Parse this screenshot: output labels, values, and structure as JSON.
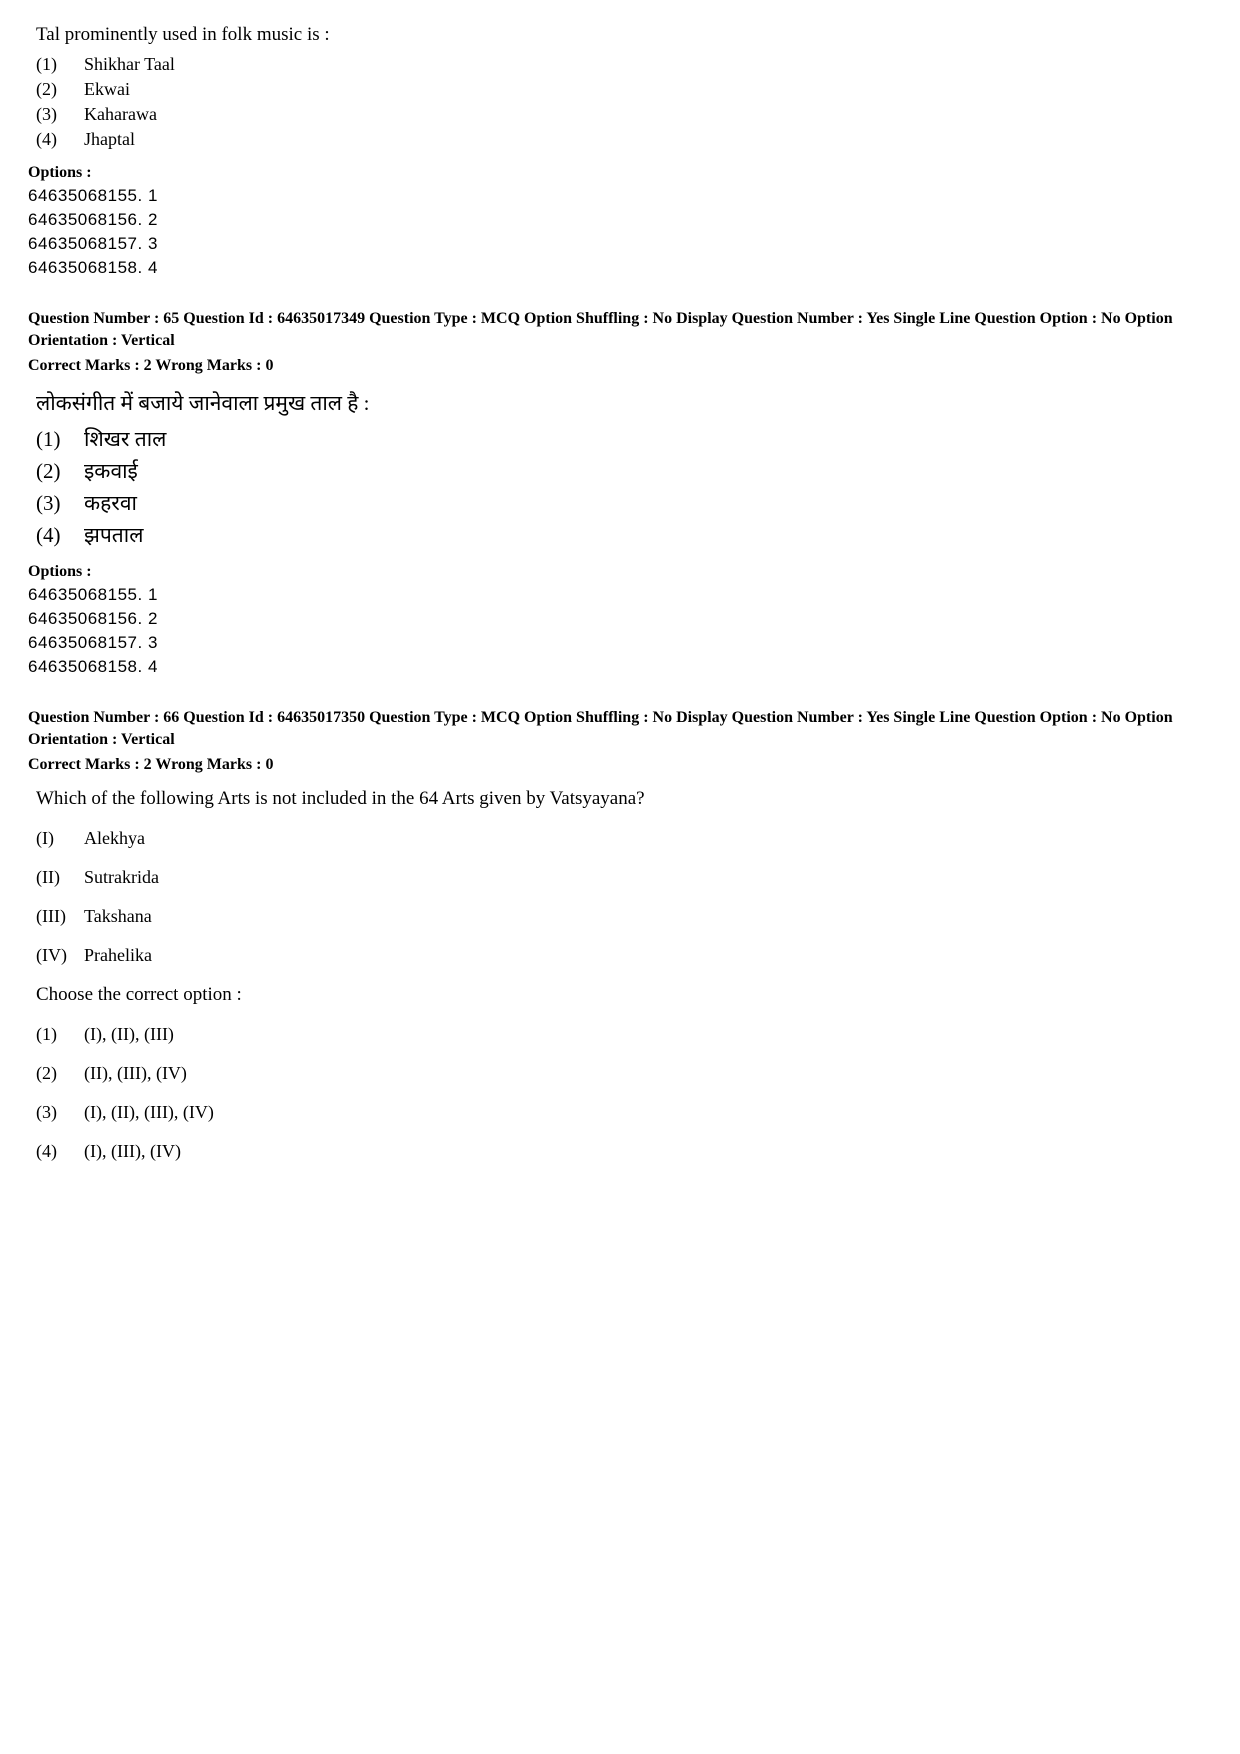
{
  "q64_partial": {
    "stem": "Tal prominently used in folk music is :",
    "choices": [
      {
        "n": "(1)",
        "t": "Shikhar Taal"
      },
      {
        "n": "(2)",
        "t": "Ekwai"
      },
      {
        "n": "(3)",
        "t": "Kaharawa"
      },
      {
        "n": "(4)",
        "t": "Jhaptal"
      }
    ],
    "options_label": "Options :",
    "options": [
      "64635068155. 1",
      "64635068156. 2",
      "64635068157. 3",
      "64635068158. 4"
    ]
  },
  "q65": {
    "meta": "Question Number : 65   Question Id : 64635017349   Question Type : MCQ   Option Shuffling : No   Display Question Number : Yes   Single Line Question Option : No   Option Orientation : Vertical",
    "marks": "Correct Marks : 2   Wrong Marks : 0",
    "stem": "लोकसंगीत में बजाये जानेवाला प्रमुख ताल है :",
    "choices": [
      {
        "n": "(1)",
        "t": "शिखर ताल"
      },
      {
        "n": "(2)",
        "t": "इकवाई"
      },
      {
        "n": "(3)",
        "t": "कहरवा"
      },
      {
        "n": "(4)",
        "t": "झपताल"
      }
    ],
    "options_label": "Options :",
    "options": [
      "64635068155. 1",
      "64635068156. 2",
      "64635068157. 3",
      "64635068158. 4"
    ]
  },
  "q66": {
    "meta": "Question Number : 66   Question Id : 64635017350   Question Type : MCQ   Option Shuffling : No   Display Question Number : Yes   Single Line Question Option : No   Option Orientation : Vertical",
    "marks": "Correct Marks : 2   Wrong Marks : 0",
    "stem": "Which of the following Arts is not included in the 64 Arts given by Vatsyayana?",
    "items": [
      {
        "n": "(I)",
        "t": "Alekhya"
      },
      {
        "n": "(II)",
        "t": "Sutrakrida"
      },
      {
        "n": "(III)",
        "t": "Takshana"
      },
      {
        "n": "(IV)",
        "t": "Prahelika"
      }
    ],
    "choose": "Choose the correct option :",
    "choices": [
      {
        "n": "(1)",
        "t": "(I), (II), (III)"
      },
      {
        "n": "(2)",
        "t": "(II), (III), (IV)"
      },
      {
        "n": "(3)",
        "t": "(I), (II), (III), (IV)"
      },
      {
        "n": "(4)",
        "t": "(I), (III), (IV)"
      }
    ]
  }
}
